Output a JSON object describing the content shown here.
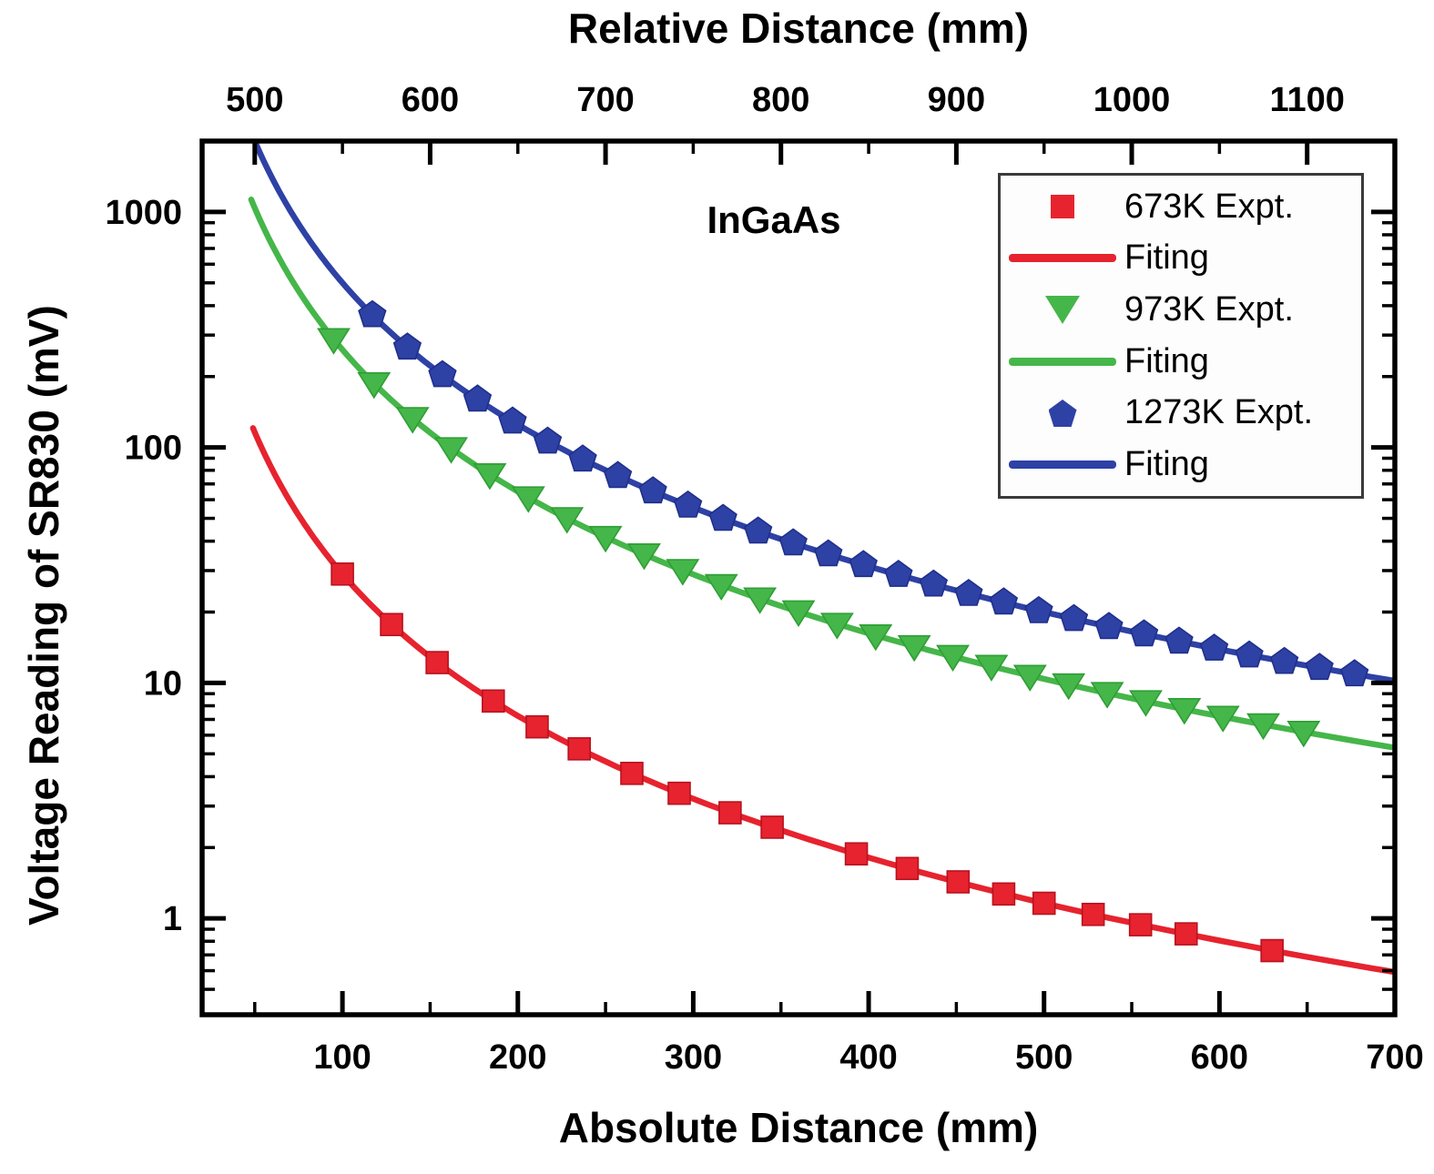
{
  "chart_data": {
    "type": "scatter",
    "y_scale": "log",
    "grid": false,
    "annotation": "InGaAs",
    "x_axis_bottom": {
      "label": "Absolute Distance (mm)",
      "ticks": [
        100,
        200,
        300,
        400,
        500,
        600,
        700
      ],
      "minor_step": 50,
      "range": [
        20,
        700
      ]
    },
    "x_axis_top": {
      "label": "Relative Distance (mm)",
      "ticks": [
        500,
        600,
        700,
        800,
        900,
        1000,
        1100
      ],
      "minor_step": 50,
      "range": [
        470,
        1150
      ],
      "relation": "relative = absolute + 450"
    },
    "y_axis": {
      "label": "Voltage Reading of SR830 (mV)",
      "ticks": [
        1,
        10,
        100,
        1000
      ],
      "range": [
        0.39,
        2000
      ]
    },
    "series": [
      {
        "name": "673K Expt.",
        "marker": "square",
        "color": "#e6232e",
        "edge_color": "#b8121f",
        "x": [
          100,
          128,
          154,
          186,
          211,
          235,
          265,
          292,
          321,
          345,
          393,
          422,
          451,
          477,
          500,
          528,
          555,
          581,
          630
        ],
        "y": [
          29.0,
          17.7,
          12.2,
          8.38,
          6.51,
          5.25,
          4.13,
          3.4,
          2.81,
          2.44,
          1.88,
          1.63,
          1.43,
          1.27,
          1.16,
          1.04,
          0.94,
          0.86,
          0.73
        ],
        "fit": {
          "label": "Fiting",
          "formula": "V = 2.9e5 / d^2",
          "coefficient": 290000,
          "exponent": -2,
          "d_start": 49,
          "d_end": 700
        }
      },
      {
        "name": "973K Expt.",
        "marker": "triangle-down",
        "color": "#45b649",
        "edge_color": "#2f9e35",
        "x": [
          95,
          118,
          140,
          162,
          184,
          206,
          228,
          250,
          272,
          294,
          316,
          338,
          360,
          382,
          404,
          426,
          448,
          470,
          492,
          514,
          536,
          558,
          580,
          602,
          625,
          648
        ],
        "y": [
          288,
          187,
          133,
          99.1,
          76.8,
          61.3,
          50.0,
          41.6,
          35.1,
          30.1,
          26.0,
          22.8,
          20.1,
          17.8,
          15.9,
          14.3,
          13.0,
          11.8,
          10.7,
          9.84,
          9.05,
          8.35,
          7.73,
          7.17,
          6.66,
          6.19
        ],
        "fit": {
          "label": "Fiting",
          "formula": "V = 2.6e6 / d^2",
          "coefficient": 2600000,
          "exponent": -2,
          "d_start": 48,
          "d_end": 700
        }
      },
      {
        "name": "1273K Expt.",
        "marker": "pentagon",
        "color": "#2e41a5",
        "edge_color": "#1f2f8a",
        "x": [
          117,
          137,
          157,
          177,
          197,
          217,
          237,
          257,
          277,
          297,
          317,
          337,
          357,
          377,
          397,
          417,
          437,
          457,
          477,
          497,
          517,
          537,
          557,
          577,
          597,
          617,
          637,
          657,
          677
        ],
        "y": [
          365,
          266,
          203,
          160,
          129,
          106,
          89.0,
          75.7,
          65.2,
          56.7,
          49.8,
          44.0,
          39.2,
          35.2,
          31.7,
          28.8,
          26.2,
          23.9,
          22.0,
          20.2,
          18.7,
          17.3,
          16.1,
          15.0,
          14.0,
          13.1,
          12.3,
          11.6,
          10.9
        ],
        "fit": {
          "label": "Fiting",
          "formula": "V = 5.0e6 / d^2",
          "coefficient": 5000000,
          "exponent": -2,
          "d_start": 50,
          "d_end": 700
        }
      }
    ],
    "legend": {
      "position": "upper right",
      "entries": [
        {
          "label": "673K Expt.",
          "swatch": "square",
          "color": "#e6232e"
        },
        {
          "label": "Fiting",
          "swatch": "line",
          "color": "#e6232e"
        },
        {
          "label": "973K Expt.",
          "swatch": "triangle-down",
          "color": "#45b649"
        },
        {
          "label": "Fiting",
          "swatch": "line",
          "color": "#45b649"
        },
        {
          "label": "1273K Expt.",
          "swatch": "pentagon",
          "color": "#2e41a5"
        },
        {
          "label": "Fiting",
          "swatch": "line",
          "color": "#2e41a5"
        }
      ]
    }
  }
}
